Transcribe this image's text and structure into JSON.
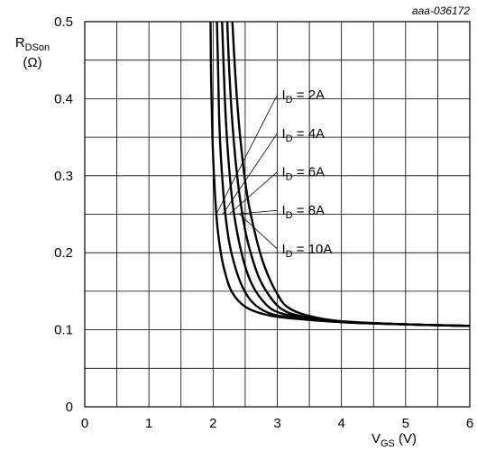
{
  "figure_code": "aaa-036172",
  "chart_data": {
    "type": "line",
    "xlabel": {
      "main": "V",
      "sub": "GS",
      "unit": " (V)"
    },
    "ylabel": {
      "main": "R",
      "sub": "DSon",
      "unit": "(Ω)"
    },
    "xlim": [
      0,
      6
    ],
    "ylim": [
      0,
      0.5
    ],
    "x_ticks": [
      "0",
      "1",
      "2",
      "3",
      "4",
      "5",
      "6"
    ],
    "y_ticks": [
      "0",
      "0.1",
      "0.2",
      "0.3",
      "0.4",
      "0.5"
    ],
    "grid": true,
    "series": [
      {
        "name": "I_D = 2A",
        "label_main": "I",
        "label_sub": "D",
        "label_tail": " = 2A",
        "x": [
          1.96,
          1.97,
          1.99,
          2.02,
          2.06,
          2.12,
          2.2,
          2.3,
          2.5,
          2.8,
          3.2,
          4.0,
          5.0,
          6.0
        ],
        "y": [
          0.5,
          0.42,
          0.35,
          0.29,
          0.24,
          0.2,
          0.17,
          0.148,
          0.13,
          0.12,
          0.115,
          0.11,
          0.107,
          0.105
        ]
      },
      {
        "name": "I_D = 4A",
        "label_main": "I",
        "label_sub": "D",
        "label_tail": " = 4A",
        "x": [
          2.06,
          2.08,
          2.1,
          2.14,
          2.19,
          2.26,
          2.35,
          2.46,
          2.62,
          2.86,
          3.2,
          4.0,
          5.0,
          6.0
        ],
        "y": [
          0.5,
          0.43,
          0.36,
          0.3,
          0.25,
          0.21,
          0.18,
          0.155,
          0.135,
          0.122,
          0.116,
          0.11,
          0.107,
          0.105
        ]
      },
      {
        "name": "I_D = 6A",
        "label_main": "I",
        "label_sub": "D",
        "label_tail": " = 6A",
        "x": [
          2.14,
          2.17,
          2.2,
          2.25,
          2.31,
          2.39,
          2.49,
          2.6,
          2.75,
          2.95,
          3.3,
          4.0,
          5.0,
          6.0
        ],
        "y": [
          0.5,
          0.43,
          0.37,
          0.31,
          0.26,
          0.22,
          0.185,
          0.16,
          0.14,
          0.125,
          0.117,
          0.11,
          0.107,
          0.105
        ]
      },
      {
        "name": "I_D = 8A",
        "label_main": "I",
        "label_sub": "D",
        "label_tail": " = 8A",
        "x": [
          2.22,
          2.25,
          2.29,
          2.35,
          2.42,
          2.51,
          2.62,
          2.73,
          2.87,
          3.05,
          3.35,
          4.0,
          5.0,
          6.0
        ],
        "y": [
          0.5,
          0.44,
          0.38,
          0.32,
          0.27,
          0.225,
          0.19,
          0.165,
          0.145,
          0.128,
          0.118,
          0.111,
          0.107,
          0.105
        ]
      },
      {
        "name": "I_D = 10A",
        "label_main": "I",
        "label_sub": "D",
        "label_tail": " = 10A",
        "x": [
          2.3,
          2.34,
          2.39,
          2.46,
          2.54,
          2.64,
          2.75,
          2.86,
          2.99,
          3.15,
          3.45,
          4.0,
          5.0,
          6.0
        ],
        "y": [
          0.5,
          0.44,
          0.38,
          0.32,
          0.27,
          0.23,
          0.195,
          0.17,
          0.148,
          0.13,
          0.119,
          0.111,
          0.107,
          0.105
        ]
      }
    ]
  }
}
